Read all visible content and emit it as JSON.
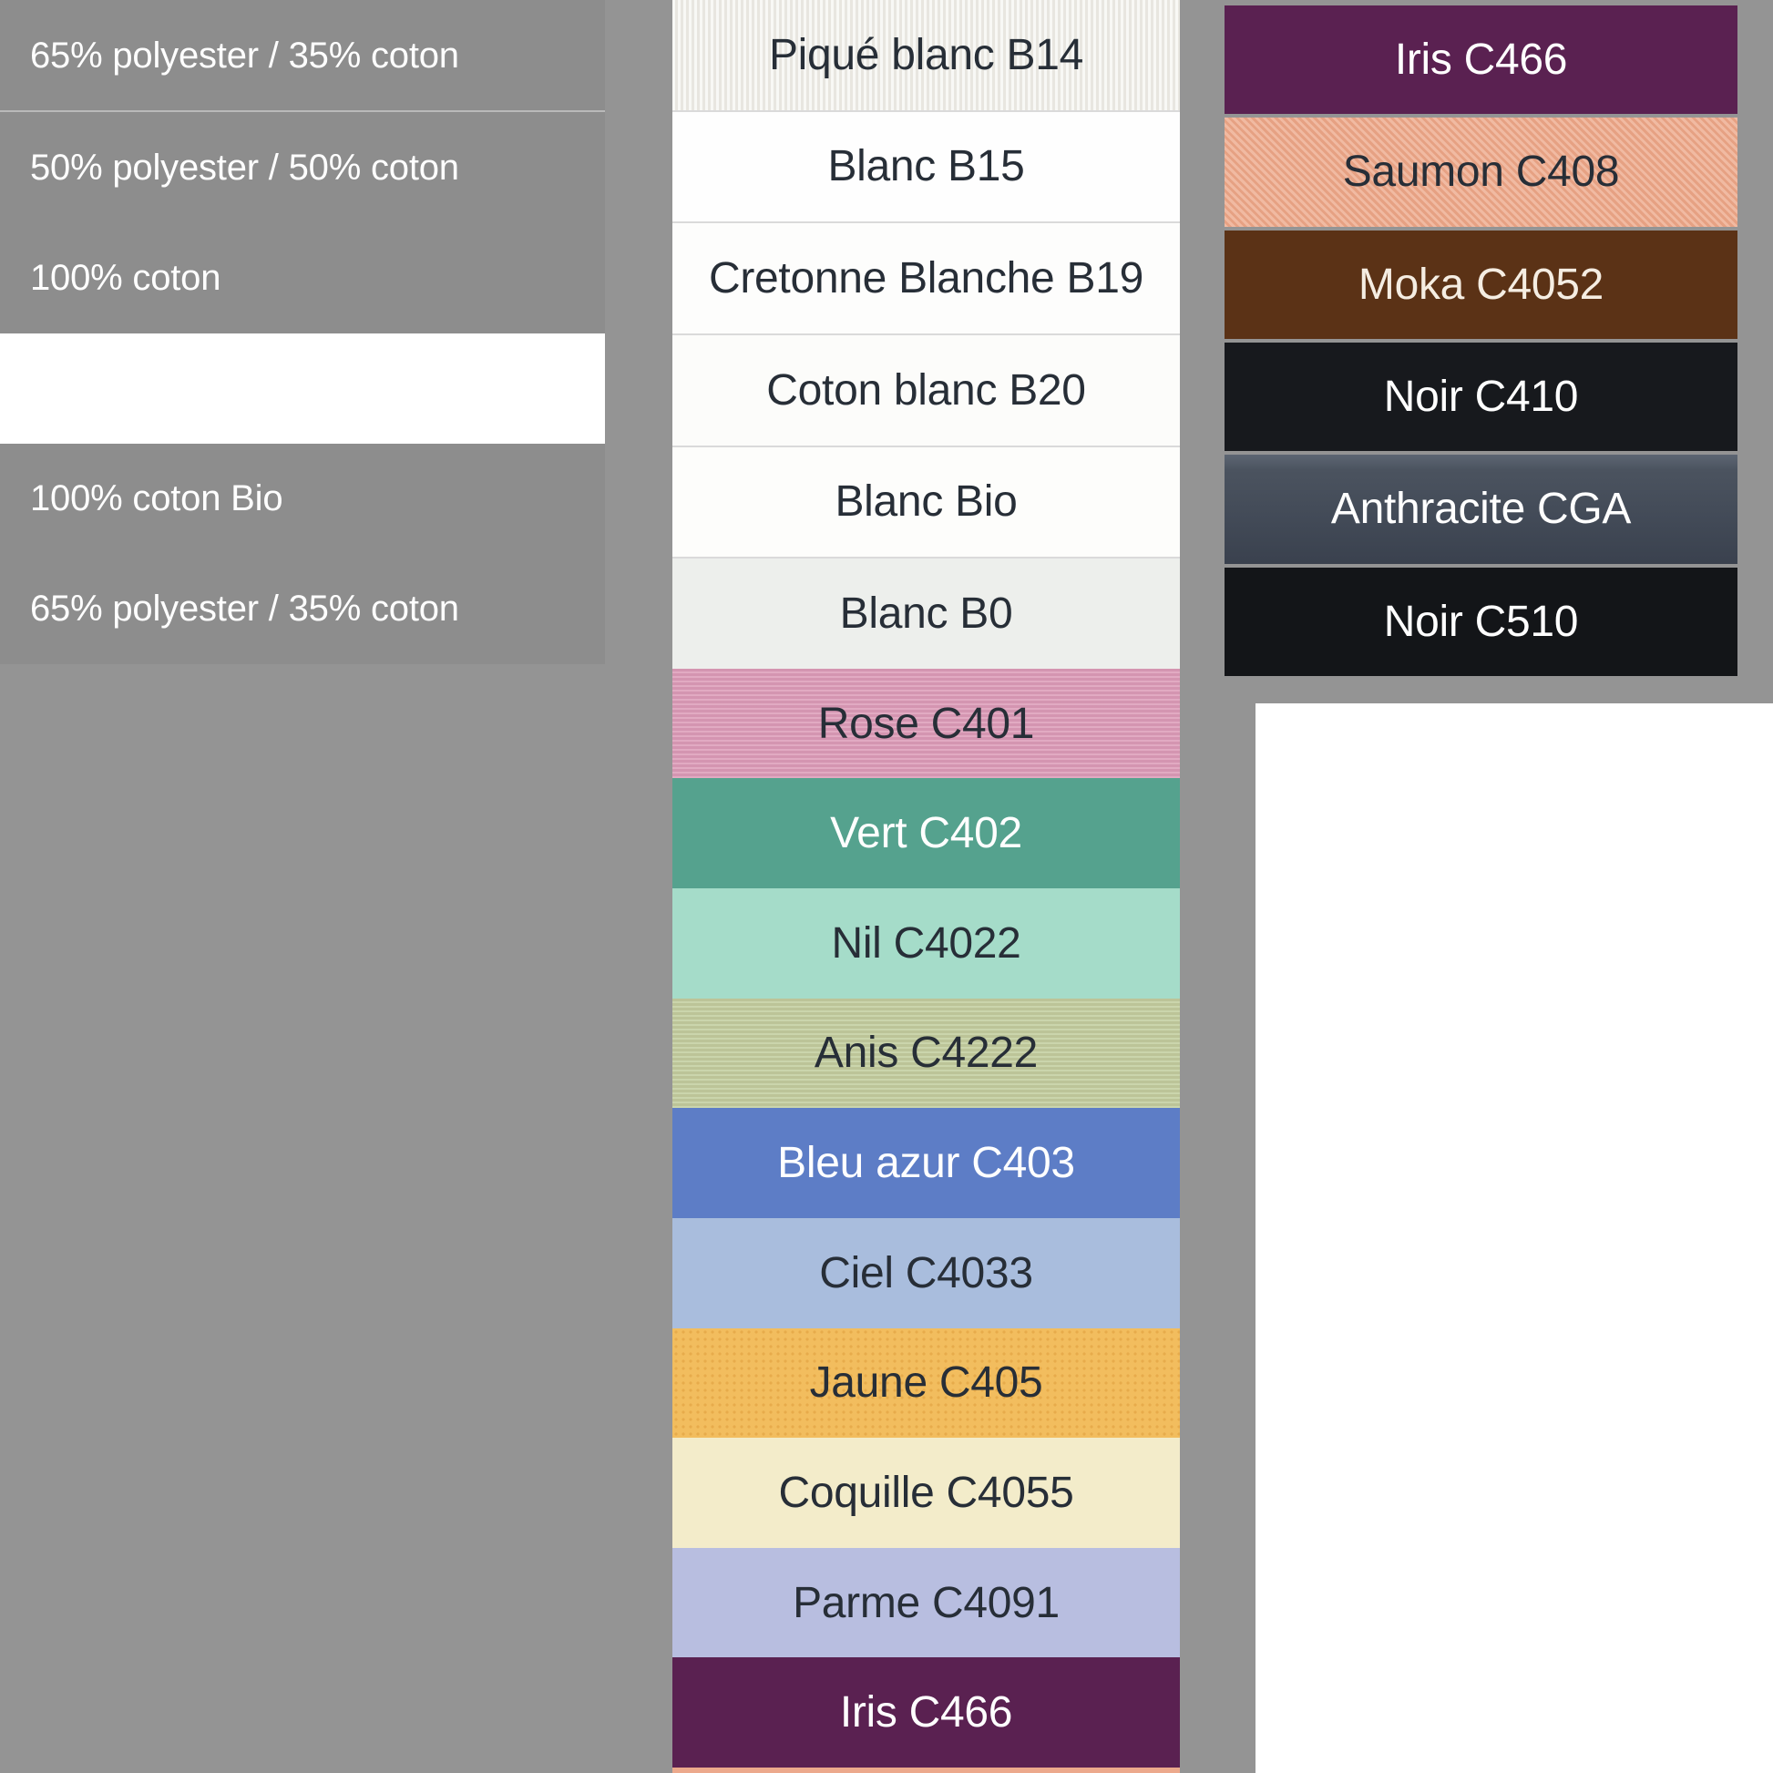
{
  "page": {
    "background_color": "#949494",
    "panel_gray": "#8d8d8d",
    "white": "#ffffff",
    "dark_text": "#272e37",
    "light_text": "#ffffff",
    "panel_divider_color": "#b9b9b9",
    "swatch_divider_color": "#dadada"
  },
  "composition_panel": {
    "rows": [
      {
        "label": "65% polyester / 35% coton",
        "background": "gray",
        "divider_below": true
      },
      {
        "label": "50% polyester / 50% coton",
        "background": "gray"
      },
      {
        "label": "100% coton",
        "background": "gray"
      },
      {
        "label": "",
        "background": "white"
      },
      {
        "label": "100% coton Bio",
        "background": "gray"
      },
      {
        "label": "65% polyester / 35% coton",
        "background": "gray"
      }
    ]
  },
  "swatch_columns": {
    "main": {
      "swatches": [
        {
          "label": "Piqué blanc B14",
          "color": "#f0efe9",
          "text_color": "#272e37",
          "texture": "ribbed",
          "divider_below": true
        },
        {
          "label": "Blanc B15",
          "color": "#fefefe",
          "text_color": "#272e37",
          "divider_below": true
        },
        {
          "label": "Cretonne Blanche B19",
          "color": "#fdfdfc",
          "text_color": "#272e37",
          "divider_below": true
        },
        {
          "label": "Coton blanc B20",
          "color": "#fcfcfa",
          "text_color": "#272e37",
          "divider_below": true
        },
        {
          "label": "Blanc Bio",
          "color": "#fdfdfb",
          "text_color": "#272e37",
          "divider_below": true
        },
        {
          "label": "Blanc B0",
          "color": "#edefec",
          "text_color": "#272e37"
        },
        {
          "label": "Rose C401",
          "color": "#dc9cb8",
          "text_color": "#272e37",
          "texture": "weave"
        },
        {
          "label": "Vert C402",
          "color": "#55a28e",
          "text_color": "#ffffff"
        },
        {
          "label": "Nil C4022",
          "color": "#a5dcc9",
          "text_color": "#272e37"
        },
        {
          "label": "Anis C4222",
          "color": "#c2ce9e",
          "text_color": "#272e37",
          "texture": "weave"
        },
        {
          "label": "Bleu azur C403",
          "color": "#5d7dc6",
          "text_color": "#ffffff"
        },
        {
          "label": "Ciel C4033",
          "color": "#a9bddd",
          "text_color": "#272e37"
        },
        {
          "label": "Jaune C405",
          "color": "#f2bd5e",
          "text_color": "#272e37",
          "texture": "dots"
        },
        {
          "label": "Coquille C4055",
          "color": "#f3ecca",
          "text_color": "#272e37"
        },
        {
          "label": "Parme C4091",
          "color": "#b8bee0",
          "text_color": "#272e37"
        },
        {
          "label": "Iris C466",
          "color": "#5a2151",
          "text_color": "#ffffff"
        }
      ],
      "partial_next_swatch_color": "#eca98c"
    },
    "right": {
      "swatches": [
        {
          "label": "Iris C466",
          "color": "#5a2151",
          "text_color": "#ffffff"
        },
        {
          "label": "Saumon C408",
          "color": "#eda98b",
          "text_color": "#272e37",
          "texture": "hatch"
        },
        {
          "label": "Moka C4052",
          "color": "#5b3216",
          "text_color": "#f5ede2"
        },
        {
          "label": "Noir C410",
          "color": "#17191d",
          "text_color": "#ffffff"
        },
        {
          "label": "Anthracite CGA",
          "color": "#49515e",
          "text_color": "#ffffff",
          "texture": "anthracite"
        },
        {
          "label": "Noir C510",
          "color": "#131518",
          "text_color": "#ffffff"
        }
      ]
    }
  }
}
